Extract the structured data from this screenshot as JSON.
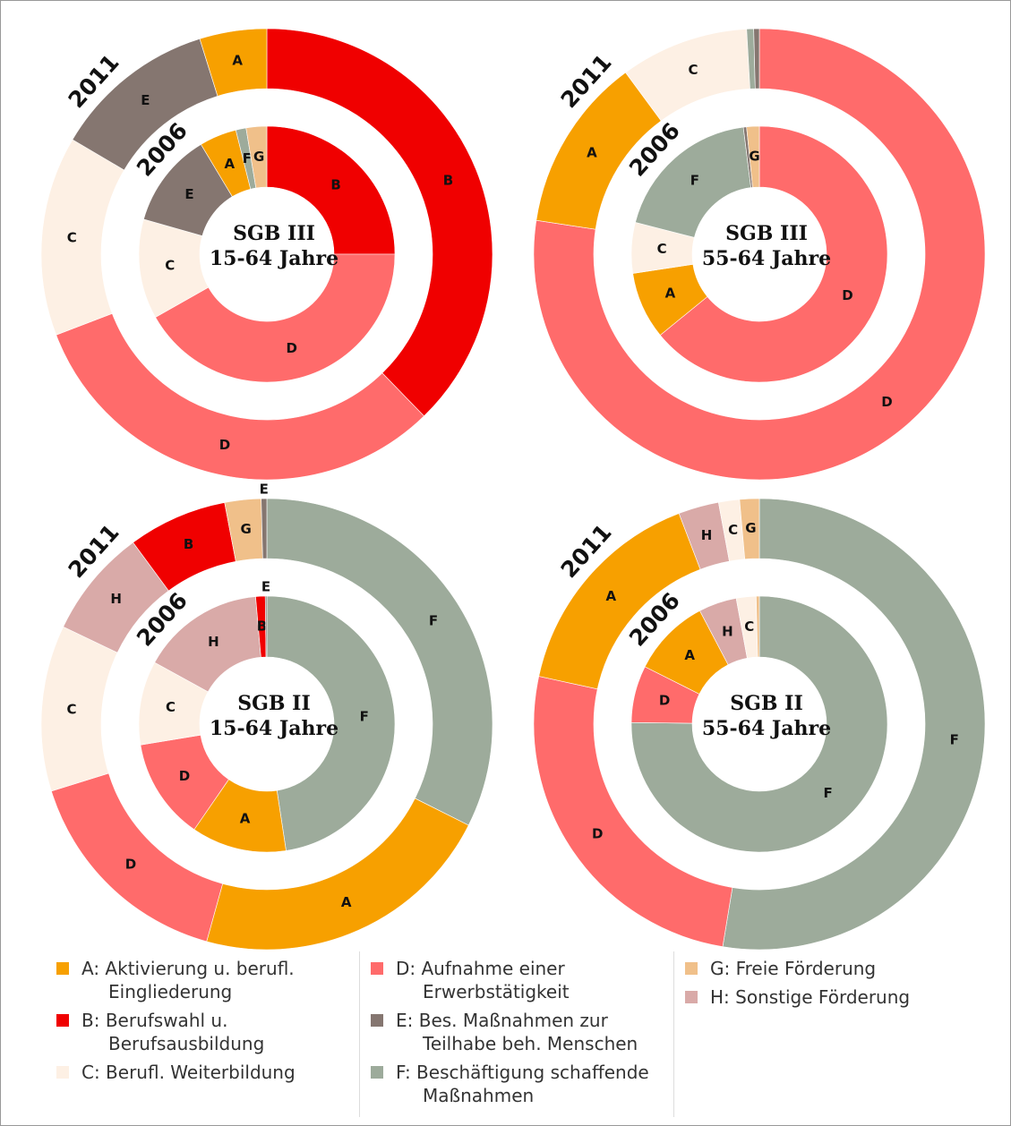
{
  "chart_data": [
    {
      "type": "donut",
      "center_label": [
        "SGB III",
        "15-64 Jahre"
      ],
      "series": [
        {
          "name": "2011",
          "categories": [
            "B",
            "D",
            "C",
            "E",
            "A"
          ],
          "colors": [
            "#f00000",
            "#ff6b6b",
            "#fdf0e4",
            "#857670",
            "#f7a000"
          ],
          "values": [
            37.7,
            31.4,
            14.3,
            11.7,
            4.8
          ]
        },
        {
          "name": "2006",
          "categories": [
            "B",
            "D",
            "C",
            "E",
            "A",
            "F",
            "G"
          ],
          "colors": [
            "#f00000",
            "#ff6b6b",
            "#fdf0e4",
            "#857670",
            "#f7a000",
            "#9dab9b",
            "#f0c08a"
          ],
          "values": [
            25,
            41.8,
            12.6,
            12,
            4.7,
            1.3,
            2.6
          ]
        }
      ]
    },
    {
      "type": "donut",
      "center_label": [
        "SGB III",
        "55-64 Jahre"
      ],
      "series": [
        {
          "name": "2011",
          "categories": [
            "D",
            "A",
            "C",
            null,
            null
          ],
          "colors": [
            "#ff6b6b",
            "#f7a000",
            "#fdf0e4",
            "#9dab9b",
            "#857670"
          ],
          "values": [
            77.4,
            12.5,
            9.2,
            0.5,
            0.4
          ]
        },
        {
          "name": "2006",
          "categories": [
            "D",
            "A",
            "C",
            "F",
            null,
            "G"
          ],
          "colors": [
            "#ff6b6b",
            "#f7a000",
            "#fdf0e4",
            "#9dab9b",
            "#857670",
            "#f0c08a"
          ],
          "values": [
            64.1,
            8.5,
            6.4,
            19,
            0.4,
            1.6
          ]
        }
      ]
    },
    {
      "type": "donut",
      "center_label": [
        "SGB II",
        "15-64 Jahre"
      ],
      "series": [
        {
          "name": "2011",
          "categories": [
            "F",
            "A",
            "D",
            "C",
            "H",
            "B",
            "G",
            "E"
          ],
          "colors": [
            "#9dab9b",
            "#f7a000",
            "#ff6b6b",
            "#fdf0e4",
            "#d9aaa8",
            "#f00000",
            "#f0c08a",
            "#857670"
          ],
          "values": [
            32.4,
            21.9,
            15.9,
            11.9,
            7.8,
            7.1,
            2.6,
            0.4
          ]
        },
        {
          "name": "2006",
          "categories": [
            "F",
            "A",
            "D",
            "C",
            "H",
            "B",
            "E"
          ],
          "colors": [
            "#9dab9b",
            "#f7a000",
            "#ff6b6b",
            "#fdf0e4",
            "#d9aaa8",
            "#f00000",
            "#857670"
          ],
          "values": [
            47.6,
            12,
            12.8,
            10.6,
            15.6,
            1.2,
            0.2
          ]
        }
      ]
    },
    {
      "type": "donut",
      "center_label": [
        "SGB II",
        "55-64 Jahre"
      ],
      "series": [
        {
          "name": "2011",
          "categories": [
            "F",
            "D",
            "A",
            "H",
            "C",
            "G"
          ],
          "colors": [
            "#9dab9b",
            "#ff6b6b",
            "#f7a000",
            "#d9aaa8",
            "#fdf0e4",
            "#f0c08a"
          ],
          "values": [
            52.6,
            25.8,
            15.8,
            2.9,
            1.5,
            1.4
          ]
        },
        {
          "name": "2006",
          "categories": [
            "F",
            "D",
            "A",
            "H",
            "C",
            null
          ],
          "colors": [
            "#9dab9b",
            "#ff6b6b",
            "#f7a000",
            "#d9aaa8",
            "#fdf0e4",
            "#f0c08a"
          ],
          "values": [
            75.2,
            7.2,
            9.9,
            4.8,
            2.5,
            0.4
          ]
        }
      ]
    }
  ],
  "legend": {
    "columns": [
      [
        {
          "label": "A: Aktivierung u. berufl. Eingliederung",
          "color": "#f7a000"
        },
        {
          "label": "B: Berufswahl u. Berufsausbildung",
          "color": "#f00000"
        },
        {
          "label": "C: Berufl. Weiterbildung",
          "color": "#fdf0e4"
        }
      ],
      [
        {
          "label": "D: Aufnahme einer Erwerbstätigkeit",
          "color": "#ff6b6b"
        },
        {
          "label": "E: Bes. Maßnahmen zur Teilhabe beh. Menschen",
          "color": "#857670"
        },
        {
          "label": "F: Beschäftigung schaffende Maßnahmen",
          "color": "#9dab9b"
        }
      ],
      [
        {
          "label": "G: Freie Förderung",
          "color": "#f0c08a"
        },
        {
          "label": "H: Sonstige Förderung",
          "color": "#d9aaa8"
        }
      ]
    ]
  }
}
